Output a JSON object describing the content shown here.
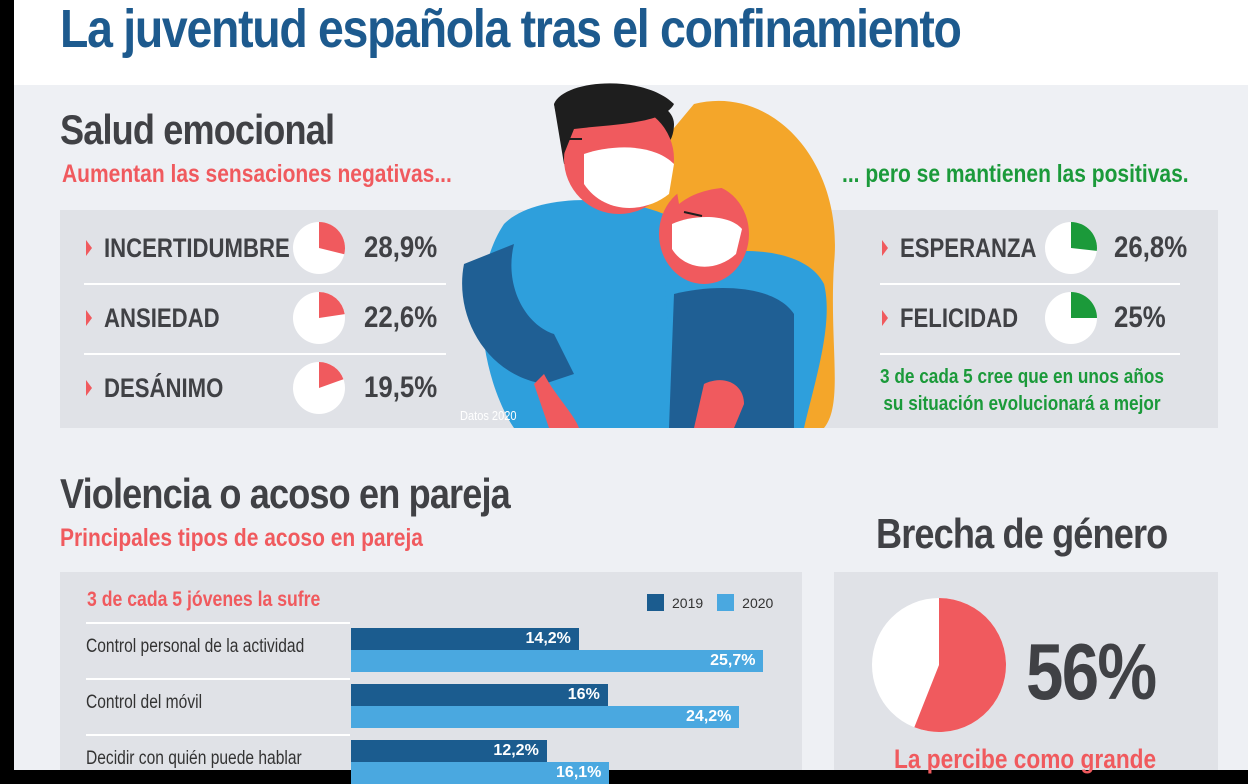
{
  "title": "La juventud española tras el confinamiento",
  "salud": {
    "heading": "Salud emocional",
    "negative_sub": "Aumentan las sensaciones negativas...",
    "positive_sub": "... pero se mantienen las positivas.",
    "negatives": [
      {
        "label": "INCERTIDUMBRE",
        "value": "28,9%",
        "pct": 28.9
      },
      {
        "label": "ANSIEDAD",
        "value": "22,6%",
        "pct": 22.6
      },
      {
        "label": "DESÁNIMO",
        "value": "19,5%",
        "pct": 19.5
      }
    ],
    "positives": [
      {
        "label": "ESPERANZA",
        "value": "26,8%",
        "pct": 26.8
      },
      {
        "label": "FELICIDAD",
        "value": "25%",
        "pct": 25
      }
    ],
    "note_line1": "3 de cada 5 cree que en unos años",
    "note_line2": "su situación evolucionará a mejor",
    "source": "Datos 2020"
  },
  "violencia": {
    "heading": "Violencia o acoso en pareja",
    "sub": "Principales tipos de acoso en pareja",
    "panel_title": "3 de cada 5 jóvenes la sufre"
  },
  "brecha": {
    "heading": "Brecha de género",
    "value": "56%",
    "pct": 56,
    "caption": "La percibe como grande"
  },
  "colors": {
    "title": "#1d5a8e",
    "negative": "#f05a5e",
    "positive": "#1b9a3a",
    "bar2019": "#1b5c8f",
    "bar2020": "#4aa8e0",
    "text": "#404145"
  },
  "chart_data": {
    "type": "bar",
    "orientation": "horizontal",
    "title": "3 de cada 5 jóvenes la sufre",
    "categories": [
      "Control personal de la actividad",
      "Control del móvil",
      "Decidir con quién puede hablar"
    ],
    "series": [
      {
        "name": "2019",
        "values": [
          14.2,
          16,
          12.2
        ],
        "labels": [
          "14,2%",
          "16%",
          "12,2%"
        ]
      },
      {
        "name": "2020",
        "values": [
          25.7,
          24.2,
          16.1
        ],
        "labels": [
          "25,7%",
          "24,2%",
          "16,1%"
        ]
      }
    ],
    "legend": "top-right",
    "grid": false
  }
}
